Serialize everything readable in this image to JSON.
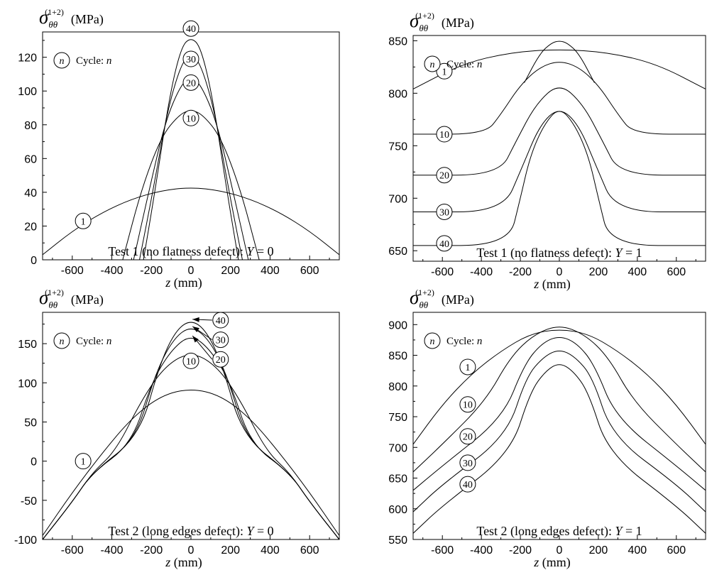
{
  "chart_data": [
    {
      "type": "line",
      "title": "Test 1 (no flatness defect): Y = 0",
      "title_parts": {
        "prefix": "Test 1 (no flatness defect): ",
        "var": "Y",
        "suffix": " = 0"
      },
      "ylabel": {
        "sym": "σ",
        "sub": "θθ",
        "sup": "(1+2)",
        "unit": "(MPa)"
      },
      "xlabel": {
        "var": "z",
        "unit": "(mm)"
      },
      "legend_note": {
        "symbol": "n",
        "text": "Cycle: ",
        "var": "n"
      },
      "xlim": [
        -750,
        750
      ],
      "ylim": [
        0,
        135
      ],
      "xticks": [
        -600,
        -400,
        -200,
        0,
        200,
        400,
        600
      ],
      "yticks": [
        0,
        20,
        40,
        60,
        80,
        100,
        120
      ],
      "series": [
        {
          "name": "1",
          "x": [
            -750,
            -600,
            -450,
            -300,
            -150,
            0,
            150,
            300,
            450,
            600,
            750
          ],
          "y": [
            3,
            17,
            28,
            36,
            41,
            43,
            41,
            36,
            28,
            17,
            3
          ],
          "label_at": [
            -545,
            23
          ]
        },
        {
          "name": "10",
          "x": [
            -345,
            -250,
            -150,
            -60,
            0,
            60,
            150,
            250,
            345
          ],
          "y": [
            0,
            42,
            73,
            86,
            89,
            86,
            73,
            42,
            0
          ],
          "label_at": [
            0,
            84
          ]
        },
        {
          "name": "20",
          "x": [
            -290,
            -210,
            -130,
            -50,
            0,
            50,
            130,
            210,
            290
          ],
          "y": [
            0,
            42,
            82,
            104,
            108,
            104,
            82,
            42,
            0
          ],
          "label_at": [
            0,
            105
          ]
        },
        {
          "name": "30",
          "x": [
            -260,
            -190,
            -120,
            -50,
            0,
            50,
            120,
            190,
            260
          ],
          "y": [
            0,
            42,
            88,
            116,
            122,
            116,
            88,
            42,
            0
          ],
          "label_at": [
            0,
            119
          ]
        },
        {
          "name": "40",
          "x": [
            -240,
            -180,
            -110,
            -50,
            0,
            50,
            110,
            180,
            240
          ],
          "y": [
            0,
            42,
            96,
            126,
            132,
            126,
            96,
            42,
            0
          ],
          "label_at": [
            0,
            137
          ]
        }
      ]
    },
    {
      "type": "line",
      "title": "Test 1 (no flatness defect): Y = 1",
      "title_parts": {
        "prefix": "Test 1 (no flatness defect): ",
        "var": "Y",
        "suffix": " = 1"
      },
      "ylabel": {
        "sym": "σ",
        "sub": "θθ",
        "sup": "(1+2)",
        "unit": "(MPa)"
      },
      "xlabel": {
        "var": "z",
        "unit": "(mm)"
      },
      "legend_note": {
        "symbol": "n",
        "text": "Cycle: ",
        "var": "n"
      },
      "xlim": [
        -750,
        750
      ],
      "ylim": [
        640,
        855
      ],
      "xticks": [
        -600,
        -400,
        -200,
        0,
        200,
        400,
        600
      ],
      "yticks": [
        650,
        700,
        750,
        800,
        850
      ],
      "series": [
        {
          "name": "1",
          "x": [
            -750,
            -500,
            -250,
            0,
            250,
            500,
            750
          ],
          "y": [
            804,
            828,
            839,
            842,
            839,
            828,
            804
          ],
          "label_at": [
            -590,
            821
          ]
        },
        {
          "name": "10",
          "x": [
            -750,
            -380,
            -300,
            -200,
            -100,
            0,
            100,
            200,
            300,
            380,
            750
          ],
          "y": [
            761,
            761,
            780,
            808,
            825,
            831,
            825,
            808,
            780,
            761,
            761
          ],
          "label_at": [
            -590,
            761
          ]
        },
        {
          "name": "20",
          "x": [
            -750,
            -310,
            -220,
            -120,
            0,
            120,
            220,
            310,
            750
          ],
          "y": [
            722,
            722,
            755,
            790,
            810,
            790,
            755,
            722,
            722
          ],
          "label_at": [
            -590,
            722
          ]
        },
        {
          "name": "30",
          "x": [
            -750,
            -290,
            -190,
            -100,
            0,
            100,
            190,
            290,
            750
          ],
          "y": [
            687,
            687,
            730,
            770,
            787,
            770,
            730,
            687,
            687
          ],
          "label_at": [
            -590,
            687
          ]
        },
        {
          "name": "40",
          "x": [
            -750,
            -260,
            -200,
            -150,
            -80,
            0,
            80,
            150,
            200,
            260,
            750
          ],
          "y": [
            655,
            655,
            700,
            740,
            770,
            787,
            770,
            740,
            700,
            655,
            655
          ],
          "label_at": [
            -590,
            657
          ]
        },
        {
          "name": "",
          "x": [
            -180,
            -100,
            -40,
            0,
            40,
            100,
            180
          ],
          "y": [
            810,
            838,
            848,
            850,
            848,
            838,
            810
          ],
          "label_at": null
        }
      ]
    },
    {
      "type": "line",
      "title": "Test 2 (long edges defect): Y = 0",
      "title_parts": {
        "prefix": "Test 2 (long edges defect): ",
        "var": "Y",
        "suffix": " = 0"
      },
      "ylabel": {
        "sym": "σ",
        "sub": "θθ",
        "sup": "(1+2)",
        "unit": "(MPa)"
      },
      "xlabel": {
        "var": "z",
        "unit": "(mm)"
      },
      "legend_note": {
        "symbol": "n",
        "text": "Cycle: ",
        "var": "n"
      },
      "xlim": [
        -750,
        750
      ],
      "ylim": [
        -100,
        190
      ],
      "xticks": [
        -600,
        -400,
        -200,
        0,
        200,
        400,
        600
      ],
      "yticks": [
        -100,
        -50,
        0,
        50,
        100,
        150
      ],
      "series": [
        {
          "name": "1",
          "x": [
            -750,
            -600,
            -450,
            -300,
            -150,
            0,
            150,
            300,
            450,
            600,
            750
          ],
          "y": [
            -95,
            -40,
            10,
            55,
            84,
            93,
            84,
            55,
            10,
            -40,
            -95
          ],
          "label_at": [
            -545,
            0
          ]
        },
        {
          "name": "10",
          "x": [
            -750,
            -600,
            -500,
            -380,
            -250,
            -130,
            0,
            130,
            250,
            380,
            500,
            600,
            750
          ],
          "y": [
            -100,
            -52,
            -15,
            13,
            78,
            122,
            140,
            122,
            78,
            13,
            -15,
            -52,
            -100
          ],
          "label_at": [
            0,
            128
          ]
        },
        {
          "name": "20",
          "x": [
            -750,
            -600,
            -500,
            -300,
            -200,
            -100,
            0,
            100,
            200,
            300,
            500,
            600,
            750
          ],
          "y": [
            -100,
            -52,
            -15,
            22,
            100,
            142,
            162,
            142,
            100,
            22,
            -15,
            -52,
            -100
          ],
          "label_at": [
            150,
            130
          ]
        },
        {
          "name": "30",
          "x": [
            -750,
            -600,
            -500,
            -280,
            -180,
            -90,
            0,
            90,
            180,
            280,
            500,
            600,
            750
          ],
          "y": [
            -100,
            -52,
            -15,
            27,
            112,
            156,
            173,
            156,
            112,
            27,
            -15,
            -52,
            -100
          ],
          "label_at": [
            150,
            155
          ]
        },
        {
          "name": "40",
          "x": [
            -750,
            -600,
            -500,
            -260,
            -160,
            -80,
            0,
            80,
            160,
            260,
            500,
            600,
            750
          ],
          "y": [
            -100,
            -52,
            -15,
            32,
            122,
            166,
            181,
            166,
            122,
            32,
            -15,
            -52,
            -100
          ],
          "label_at": [
            150,
            180
          ]
        }
      ]
    },
    {
      "type": "line",
      "title": "Test 2 (long edges defect): Y = 1",
      "title_parts": {
        "prefix": "Test 2 (long edges defect): ",
        "var": "Y",
        "suffix": " = 1"
      },
      "ylabel": {
        "sym": "σ",
        "sub": "θθ",
        "sup": "(1+2)",
        "unit": "(MPa)"
      },
      "xlabel": {
        "var": "z",
        "unit": "(mm)"
      },
      "legend_note": {
        "symbol": "n",
        "text": "Cycle: ",
        "var": "n"
      },
      "xlim": [
        -750,
        750
      ],
      "ylim": [
        550,
        920
      ],
      "xticks": [
        -600,
        -400,
        -200,
        0,
        200,
        400,
        600
      ],
      "yticks": [
        550,
        600,
        650,
        700,
        750,
        800,
        850,
        900
      ],
      "series": [
        {
          "name": "1",
          "x": [
            -750,
            -600,
            -450,
            -300,
            -150,
            0,
            150,
            300,
            450,
            600,
            750
          ],
          "y": [
            705,
            770,
            820,
            857,
            885,
            893,
            885,
            857,
            820,
            770,
            705
          ],
          "label_at": [
            -470,
            831
          ]
        },
        {
          "name": "10",
          "x": [
            -750,
            -600,
            -380,
            -250,
            -130,
            0,
            130,
            250,
            380,
            600,
            750
          ],
          "y": [
            660,
            705,
            775,
            848,
            884,
            900,
            884,
            848,
            775,
            705,
            660
          ],
          "label_at": [
            -470,
            770
          ]
        },
        {
          "name": "20",
          "x": [
            -750,
            -600,
            -290,
            -180,
            -90,
            0,
            90,
            180,
            290,
            600,
            750
          ],
          "y": [
            630,
            670,
            748,
            835,
            870,
            882,
            870,
            835,
            748,
            670,
            630
          ],
          "label_at": [
            -470,
            718
          ]
        },
        {
          "name": "30",
          "x": [
            -750,
            -600,
            -270,
            -170,
            -80,
            0,
            80,
            170,
            270,
            600,
            750
          ],
          "y": [
            595,
            640,
            718,
            815,
            848,
            860,
            848,
            815,
            718,
            640,
            595
          ],
          "label_at": [
            -470,
            675
          ]
        },
        {
          "name": "40",
          "x": [
            -750,
            -600,
            -250,
            -150,
            -70,
            0,
            70,
            150,
            250,
            600,
            750
          ],
          "y": [
            560,
            605,
            690,
            790,
            825,
            838,
            825,
            790,
            690,
            605,
            560
          ],
          "label_at": [
            -470,
            640
          ]
        }
      ]
    }
  ]
}
